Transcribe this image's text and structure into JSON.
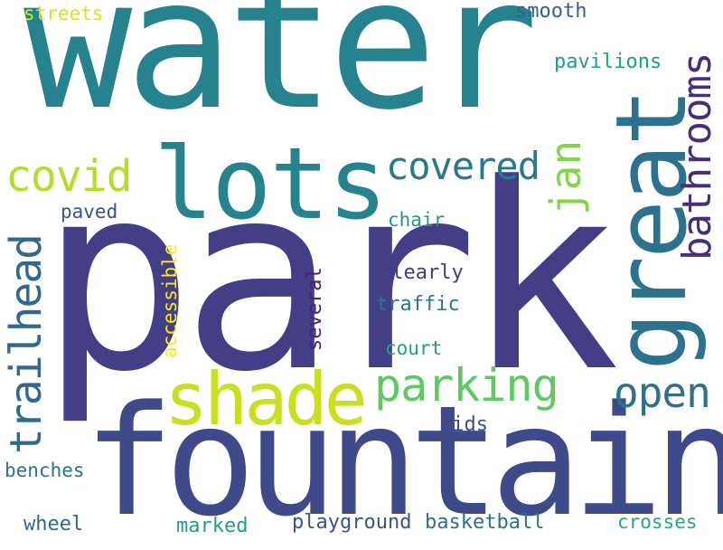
{
  "palette": {
    "background": "#ffffff",
    "dark_purple": "#472d7b",
    "indigo": "#3e4a89",
    "blue": "#31688e",
    "teal": "#26828e",
    "green_teal": "#1f9e89",
    "green": "#35b779",
    "light_green": "#6ece58",
    "lime": "#b5de2b",
    "yellow": "#fde725"
  },
  "words": {
    "water": {
      "text": "water",
      "color": "#26828e"
    },
    "park": {
      "text": "park",
      "color": "#433e85"
    },
    "fountain": {
      "text": "fountain",
      "color": "#3e4a89"
    },
    "lots": {
      "text": "lots",
      "color": "#26828e"
    },
    "great": {
      "text": "great",
      "color": "#2c728e"
    },
    "shade": {
      "text": "shade",
      "color": "#c8e020"
    },
    "parking": {
      "text": "parking",
      "color": "#5ec962"
    },
    "covid": {
      "text": "covid",
      "color": "#b5de2b"
    },
    "covered": {
      "text": "covered",
      "color": "#2a788e"
    },
    "trailhead": {
      "text": "trailhead",
      "color": "#31688e"
    },
    "bathrooms": {
      "text": "bathrooms",
      "color": "#472d7b"
    },
    "open": {
      "text": "open",
      "color": "#2c728e"
    },
    "jan": {
      "text": "jan",
      "color": "#84d44b"
    },
    "pavilions": {
      "text": "pavilions",
      "color": "#1f9e89"
    },
    "smooth": {
      "text": "smooth",
      "color": "#33638d"
    },
    "streets": {
      "text": "streets",
      "color": "#d8e219"
    },
    "paved": {
      "text": "paved",
      "color": "#3b528b"
    },
    "chair": {
      "text": "chair",
      "color": "#1f988b"
    },
    "accessible": {
      "text": "accessible",
      "color": "#fde725"
    },
    "several": {
      "text": "several",
      "color": "#482173"
    },
    "clearly": {
      "text": "clearly",
      "color": "#443a83"
    },
    "traffic": {
      "text": "traffic",
      "color": "#2a788e"
    },
    "court": {
      "text": "court",
      "color": "#1fa088"
    },
    "kids": {
      "text": "kids",
      "color": "#3e4a89"
    },
    "benches": {
      "text": "benches",
      "color": "#2c728e"
    },
    "wheel": {
      "text": "wheel",
      "color": "#31688e"
    },
    "marked": {
      "text": "marked",
      "color": "#1f9e89"
    },
    "playground": {
      "text": "playground",
      "color": "#3b528b"
    },
    "basketball": {
      "text": "basketball",
      "color": "#2c728e"
    },
    "crosses": {
      "text": "crosses",
      "color": "#22a884"
    }
  }
}
